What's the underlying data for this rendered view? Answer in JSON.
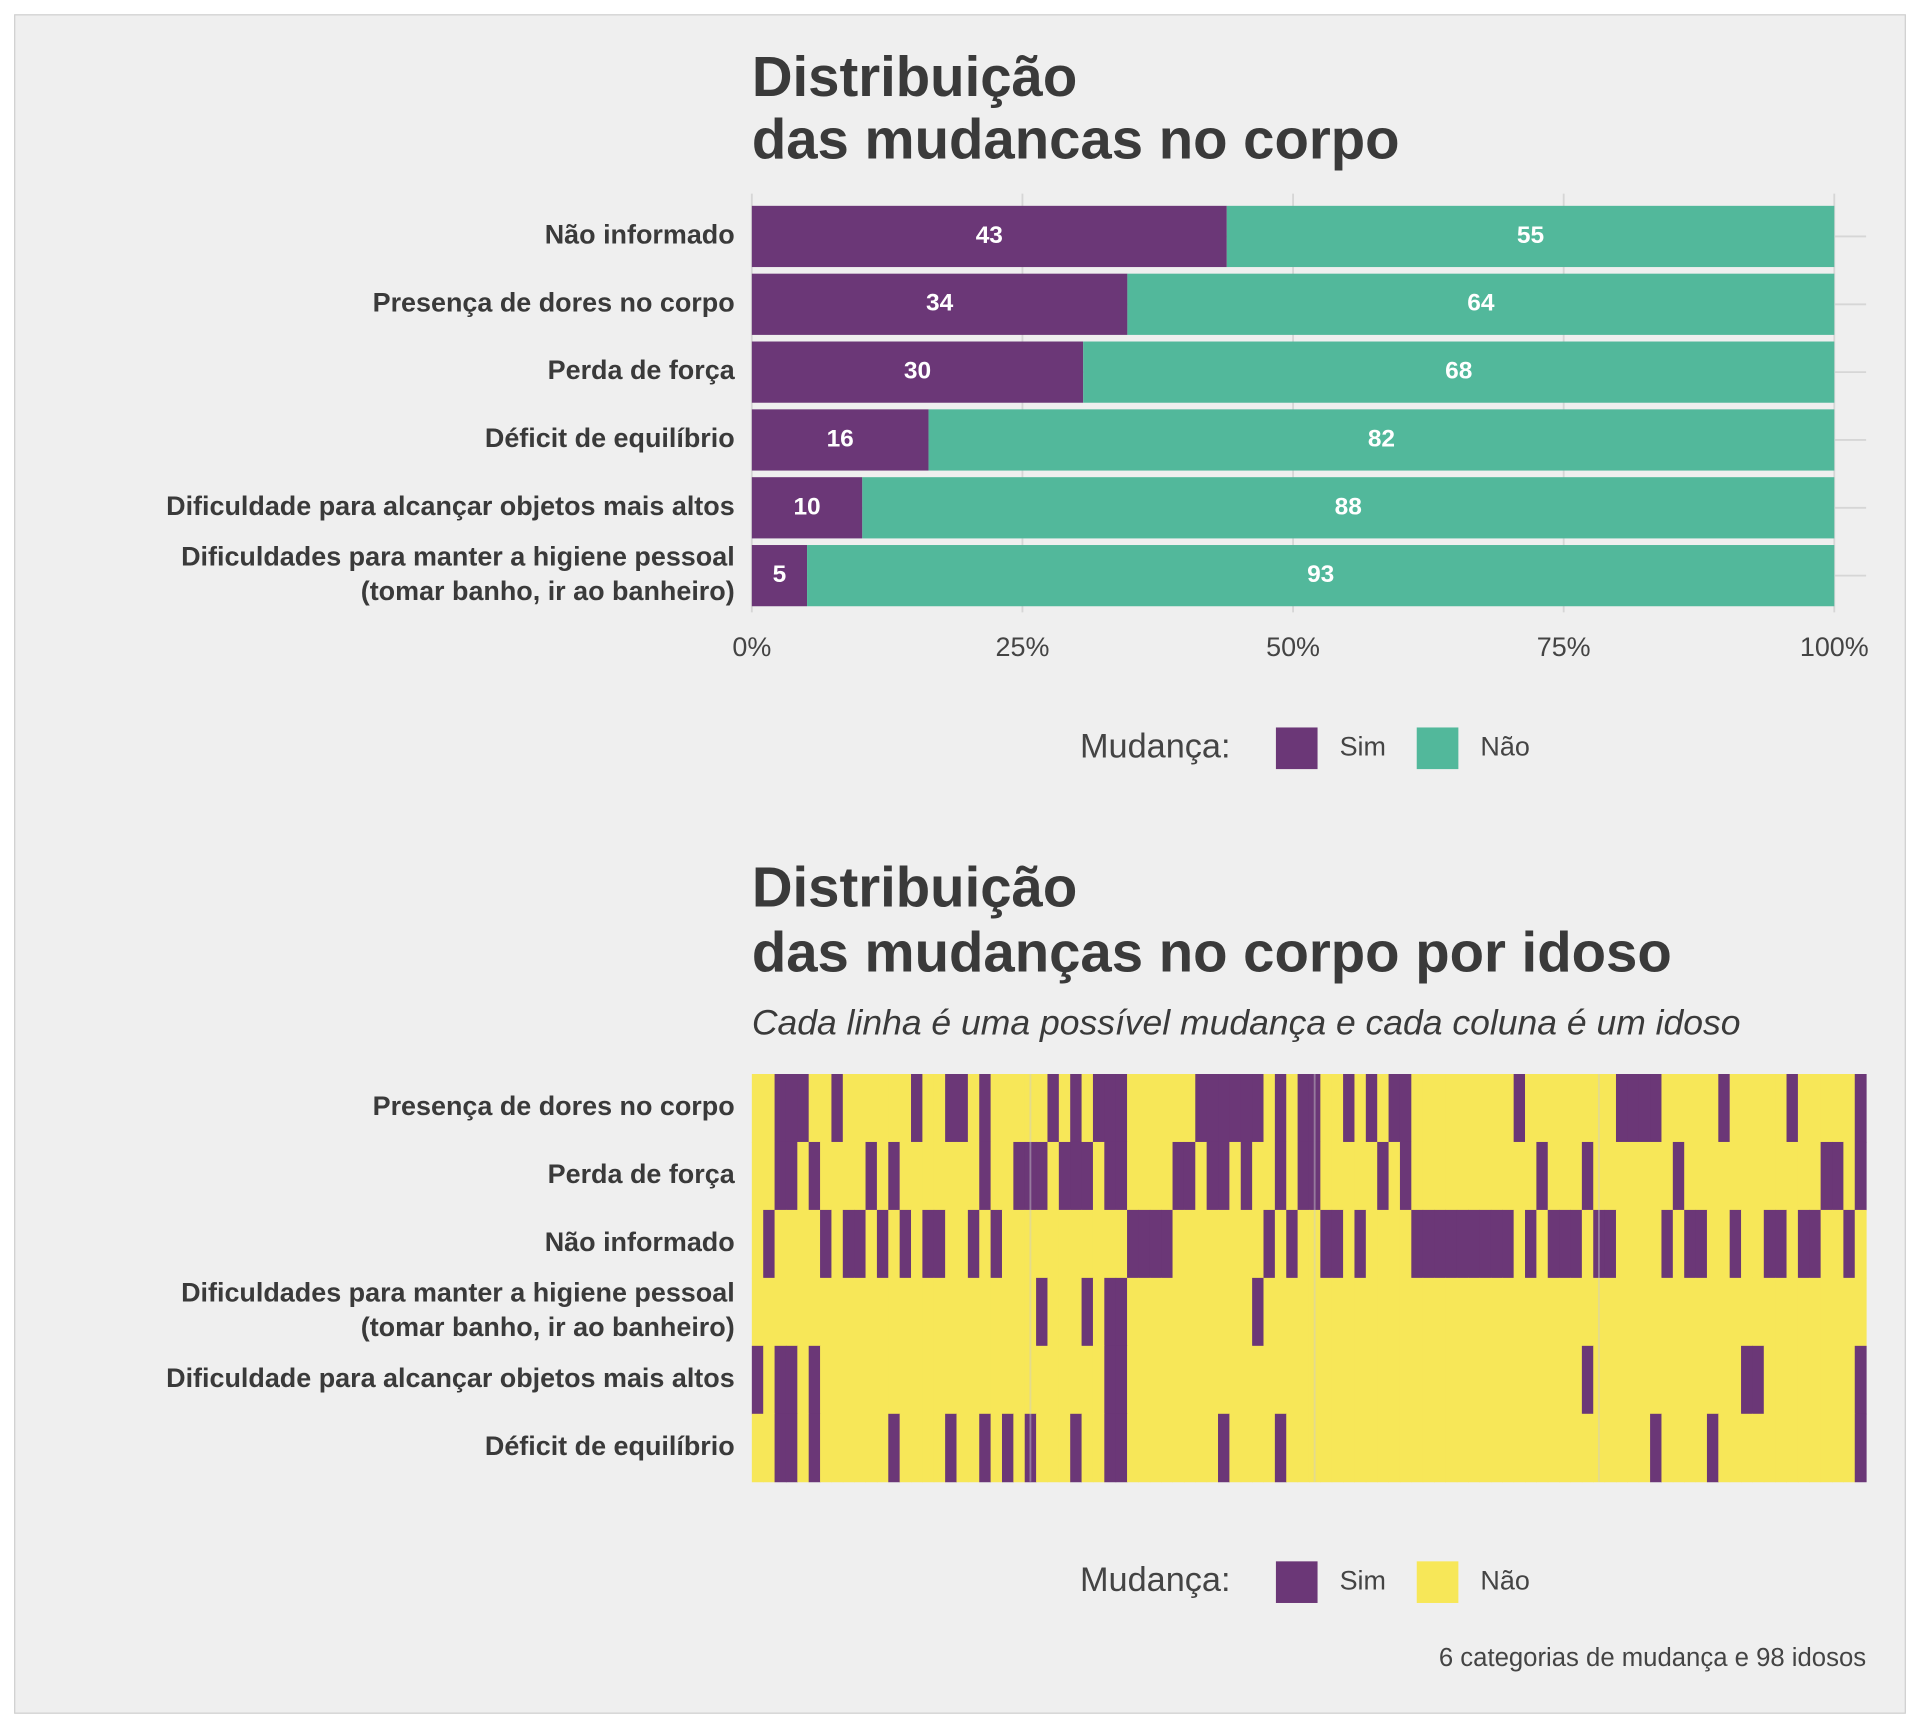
{
  "chart_data": [
    {
      "type": "bar",
      "orientation": "horizontal",
      "stacking": "fill",
      "title": "Distribuição\ndas mudancas no corpo",
      "categories": [
        "Não informado",
        "Presença de dores no corpo",
        "Perda de força",
        "Déficit de equilíbrio",
        "Dificuldade para alcançar objetos mais altos",
        "Dificuldades para manter a higiene pessoal\n(tomar banho, ir ao banheiro)"
      ],
      "series": [
        {
          "name": "Sim",
          "color": "#6b3777",
          "values": [
            43,
            34,
            30,
            16,
            10,
            5
          ]
        },
        {
          "name": "Não",
          "color": "#52b89b",
          "values": [
            55,
            64,
            68,
            82,
            88,
            93
          ]
        }
      ],
      "xlim": [
        0,
        100
      ],
      "xticks": [
        {
          "value": 0,
          "label": "0%"
        },
        {
          "value": 25,
          "label": "25%"
        },
        {
          "value": 50,
          "label": "50%"
        },
        {
          "value": 75,
          "label": "75%"
        },
        {
          "value": 100,
          "label": "100%"
        }
      ],
      "grid": true,
      "legend_title": "Mudança:",
      "legend_position": "bottom"
    },
    {
      "type": "heatmap",
      "title": "Distribuição\ndas mudanças no corpo por idoso",
      "subtitle": "Cada linha é uma possível mudança e cada coluna é um idoso",
      "levels": [
        {
          "name": "Sim",
          "color": "#6b3777"
        },
        {
          "name": "Não",
          "color": "#f7e758"
        }
      ],
      "rows": [
        {
          "name": "Presença de dores no corpo",
          "values": [
            1,
            1,
            0,
            0,
            0,
            1,
            1,
            0,
            1,
            1,
            1,
            1,
            1,
            1,
            0,
            1,
            1,
            0,
            0,
            1,
            0,
            1,
            1,
            1,
            1,
            1,
            0,
            1,
            0,
            1,
            0,
            0,
            0,
            1,
            1,
            1,
            1,
            1,
            1,
            0,
            0,
            0,
            0,
            0,
            0,
            1,
            0,
            1,
            0,
            0,
            1,
            1,
            0,
            1,
            0,
            1,
            0,
            0,
            1,
            1,
            1,
            1,
            1,
            1,
            1,
            1,
            1,
            0,
            1,
            1,
            1,
            1,
            1,
            1,
            1,
            1,
            0,
            0,
            0,
            0,
            1,
            1,
            1,
            1,
            1,
            0,
            1,
            1,
            1,
            1,
            1,
            0,
            1,
            1,
            1,
            1,
            1,
            0
          ]
        },
        {
          "name": "Perda de força",
          "values": [
            1,
            1,
            0,
            0,
            1,
            0,
            1,
            1,
            1,
            1,
            0,
            1,
            0,
            1,
            1,
            1,
            1,
            1,
            1,
            1,
            0,
            1,
            1,
            0,
            0,
            0,
            1,
            0,
            0,
            0,
            1,
            0,
            0,
            1,
            1,
            1,
            1,
            0,
            0,
            1,
            0,
            0,
            1,
            0,
            1,
            1,
            0,
            1,
            0,
            0,
            1,
            1,
            1,
            1,
            1,
            0,
            1,
            0,
            1,
            1,
            1,
            1,
            1,
            1,
            1,
            1,
            1,
            1,
            1,
            0,
            1,
            1,
            1,
            0,
            1,
            1,
            1,
            1,
            1,
            1,
            1,
            0,
            1,
            1,
            1,
            1,
            1,
            1,
            1,
            1,
            1,
            1,
            1,
            1,
            0,
            0,
            1,
            0
          ]
        },
        {
          "name": "Não informado",
          "values": [
            1,
            0,
            1,
            1,
            1,
            1,
            0,
            1,
            0,
            0,
            1,
            0,
            1,
            0,
            1,
            0,
            0,
            1,
            1,
            0,
            1,
            0,
            1,
            1,
            1,
            1,
            1,
            1,
            1,
            1,
            1,
            1,
            1,
            0,
            0,
            0,
            0,
            1,
            1,
            1,
            1,
            1,
            1,
            1,
            1,
            0,
            1,
            0,
            1,
            1,
            0,
            0,
            1,
            0,
            1,
            1,
            1,
            1,
            0,
            0,
            0,
            0,
            0,
            0,
            0,
            0,
            0,
            1,
            0,
            1,
            0,
            0,
            0,
            1,
            0,
            0,
            1,
            1,
            1,
            1,
            0,
            1,
            0,
            0,
            1,
            1,
            0,
            1,
            1,
            0,
            0,
            1,
            0,
            0,
            1,
            1,
            0,
            1
          ]
        },
        {
          "name": "Dificuldades para manter a higiene pessoal\n(tomar banho, ir ao banheiro)",
          "values": [
            1,
            1,
            1,
            1,
            1,
            1,
            1,
            1,
            1,
            1,
            1,
            1,
            1,
            1,
            1,
            1,
            1,
            1,
            1,
            1,
            1,
            1,
            1,
            1,
            1,
            0,
            1,
            1,
            1,
            0,
            1,
            0,
            0,
            1,
            1,
            1,
            1,
            1,
            1,
            1,
            1,
            1,
            1,
            1,
            0,
            1,
            1,
            1,
            1,
            1,
            1,
            1,
            1,
            1,
            1,
            1,
            1,
            1,
            1,
            1,
            1,
            1,
            1,
            1,
            1,
            1,
            1,
            1,
            1,
            1,
            1,
            1,
            1,
            1,
            1,
            1,
            1,
            1,
            1,
            1,
            1,
            1,
            1,
            1,
            1,
            1,
            1,
            1,
            1,
            1,
            1,
            1,
            1,
            1,
            1,
            1,
            1,
            1
          ]
        },
        {
          "name": "Dificuldade para alcançar objetos mais altos",
          "values": [
            0,
            1,
            0,
            0,
            1,
            0,
            1,
            1,
            1,
            1,
            1,
            1,
            1,
            1,
            1,
            1,
            1,
            1,
            1,
            1,
            1,
            1,
            1,
            1,
            1,
            1,
            1,
            1,
            1,
            1,
            1,
            0,
            0,
            1,
            1,
            1,
            1,
            1,
            1,
            1,
            1,
            1,
            1,
            1,
            1,
            1,
            1,
            1,
            1,
            1,
            1,
            1,
            1,
            1,
            1,
            1,
            1,
            1,
            1,
            1,
            1,
            1,
            1,
            1,
            1,
            1,
            1,
            1,
            1,
            1,
            1,
            1,
            1,
            0,
            1,
            1,
            1,
            1,
            1,
            1,
            1,
            1,
            1,
            1,
            1,
            1,
            1,
            0,
            0,
            1,
            1,
            1,
            1,
            1,
            1,
            1,
            1,
            0
          ]
        },
        {
          "name": "Déficit de equilíbrio",
          "values": [
            1,
            1,
            0,
            0,
            1,
            0,
            1,
            1,
            1,
            1,
            1,
            1,
            0,
            1,
            1,
            1,
            1,
            0,
            1,
            1,
            0,
            1,
            0,
            1,
            0,
            1,
            1,
            1,
            0,
            1,
            1,
            0,
            0,
            1,
            1,
            1,
            1,
            1,
            1,
            1,
            1,
            0,
            1,
            1,
            1,
            1,
            0,
            1,
            1,
            1,
            1,
            1,
            1,
            1,
            1,
            1,
            1,
            1,
            1,
            1,
            1,
            1,
            1,
            1,
            1,
            1,
            1,
            1,
            1,
            1,
            1,
            1,
            1,
            1,
            1,
            1,
            1,
            1,
            1,
            0,
            1,
            1,
            1,
            1,
            0,
            1,
            1,
            1,
            1,
            1,
            1,
            1,
            1,
            1,
            1,
            1,
            1,
            0
          ]
        }
      ],
      "xlim": [
        0.5,
        98.5
      ],
      "xgrid": [
        25,
        50,
        75
      ],
      "legend_title": "Mudança:",
      "legend_position": "bottom",
      "caption": "6 categorias de mudança e 98 idosos"
    }
  ]
}
